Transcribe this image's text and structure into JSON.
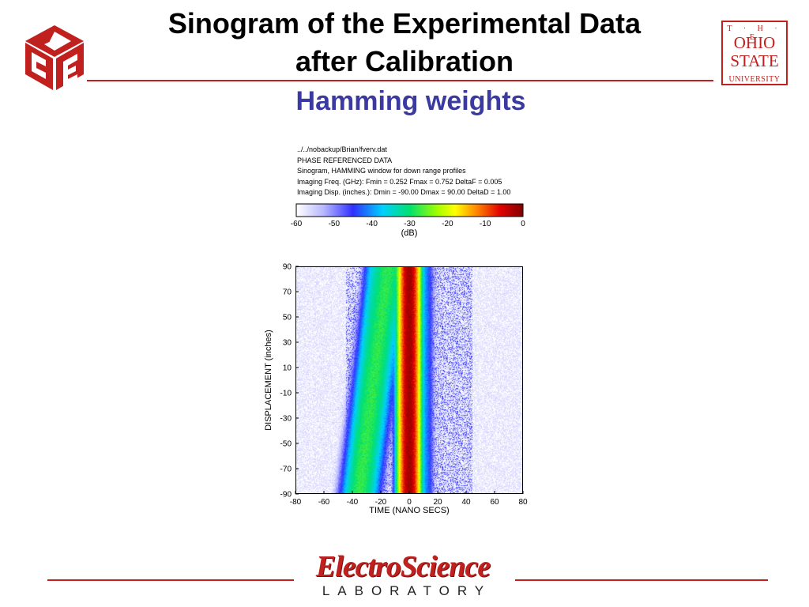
{
  "slide": {
    "title_line1": "Sinogram of the Experimental Data",
    "title_line2": "after Calibration",
    "subtitle": "Hamming weights"
  },
  "logos": {
    "left_logo": "cube-logo",
    "osu_the": "T · H · E",
    "osu_ohio": "OHIO",
    "osu_state": "STATE",
    "osu_university": "UNIVERSITY",
    "esl_name": "ElectroScience",
    "esl_laboratory": "LABORATORY"
  },
  "colors": {
    "accent_red": "#c0201e",
    "subtitle_blue": "#3a3aa0"
  },
  "chart_data": {
    "type": "heatmap",
    "header_lines": [
      "../../nobackup/Brian/fverv.dat",
      "PHASE REFERENCED DATA",
      "Sinogram, HAMMING window for down range profiles",
      "Imaging Freq. (GHz):  Fmin = 0.252   Fmax = 0.752   DeltaF = 0.005",
      "Imaging Disp. (inches.):  Dmin = -90.00   Dmax = 90.00   DeltaD = 1.00"
    ],
    "colorbar": {
      "range": [
        -60,
        0
      ],
      "ticks": [
        -60,
        -50,
        -40,
        -30,
        -20,
        -10,
        0
      ],
      "label": "(dB)"
    },
    "xlabel": "TIME (NANO SECS)",
    "ylabel": "DISPLACEMENT (inches)",
    "xlim": [
      -80,
      80
    ],
    "ylim": [
      -90,
      90
    ],
    "x_ticks": [
      -80,
      -60,
      -40,
      -20,
      0,
      20,
      40,
      60,
      80
    ],
    "y_ticks": [
      90,
      70,
      50,
      30,
      10,
      -10,
      -30,
      -50,
      -70,
      -90
    ],
    "features": [
      {
        "time_at_top": 0,
        "time_at_bottom": 0,
        "width_ns": 5,
        "level_db": -2
      },
      {
        "time_at_top": -15,
        "time_at_bottom": -35,
        "width_ns": 10,
        "level_db": -28
      },
      {
        "time_at_top": -25,
        "time_at_bottom": -38,
        "width_ns": 6,
        "level_db": -38
      },
      {
        "time_at_top": 10,
        "time_at_bottom": 10,
        "width_ns": 6,
        "level_db": -40
      }
    ],
    "noise_floor_db": -58
  }
}
